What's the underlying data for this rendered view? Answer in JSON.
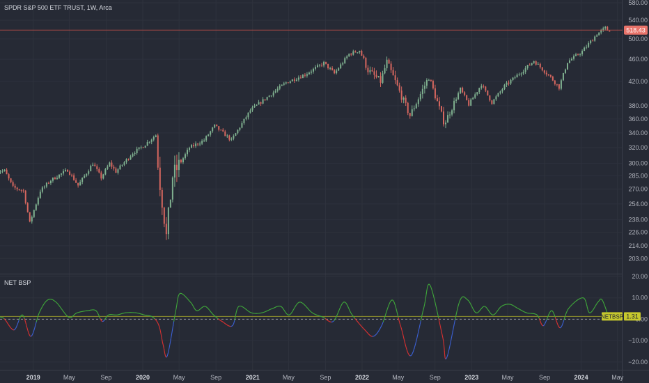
{
  "colors": {
    "background": "#262a35",
    "up_candle": "#7fb08f",
    "down_candle": "#d7675f",
    "price_line": "#c9504a",
    "osc_green": "#3fa43a",
    "osc_red": "#d63131",
    "osc_blue": "#3b5fd1",
    "osc_yellow_line": "#8d8f2c",
    "badge_yellow": "#c6c82d"
  },
  "icons": [],
  "chart_data": [
    {
      "type": "candlestick",
      "title": "SPDR S&P 500 ETF TRUST, 1W, Arca",
      "scale": "log",
      "ylim": [
        198,
        580
      ],
      "y_ticks": [
        203.0,
        214.0,
        226.0,
        238.0,
        254.0,
        270.0,
        285.0,
        300.0,
        320.0,
        340.0,
        360.0,
        380.0,
        420.0,
        460.0,
        500.0,
        540.0,
        580.0
      ],
      "last_price_label": "518.43",
      "last_price": 518.43,
      "x_ticks": [
        {
          "label": "2019",
          "date": "2019-01-01",
          "bold": true
        },
        {
          "label": "May",
          "date": "2019-05-01",
          "bold": false
        },
        {
          "label": "Sep",
          "date": "2019-09-01",
          "bold": false
        },
        {
          "label": "2020",
          "date": "2020-01-01",
          "bold": true
        },
        {
          "label": "May",
          "date": "2020-05-01",
          "bold": false
        },
        {
          "label": "Sep",
          "date": "2020-09-01",
          "bold": false
        },
        {
          "label": "2021",
          "date": "2021-01-01",
          "bold": true
        },
        {
          "label": "May",
          "date": "2021-05-01",
          "bold": false
        },
        {
          "label": "Sep",
          "date": "2021-09-01",
          "bold": false
        },
        {
          "label": "2022",
          "date": "2022-01-01",
          "bold": true
        },
        {
          "label": "May",
          "date": "2022-05-01",
          "bold": false
        },
        {
          "label": "Sep",
          "date": "2022-09-01",
          "bold": false
        },
        {
          "label": "2023",
          "date": "2023-01-01",
          "bold": true
        },
        {
          "label": "May",
          "date": "2023-05-01",
          "bold": false
        },
        {
          "label": "Sep",
          "date": "2023-09-01",
          "bold": false
        },
        {
          "label": "2024",
          "date": "2024-01-01",
          "bold": true
        },
        {
          "label": "May",
          "date": "2024-05-01",
          "bold": false
        }
      ],
      "price_path": [
        [
          "2018-08-27",
          290
        ],
        [
          "2018-10-01",
          291
        ],
        [
          "2018-10-29",
          272
        ],
        [
          "2018-12-03",
          268
        ],
        [
          "2018-12-24",
          235
        ],
        [
          "2019-01-28",
          268
        ],
        [
          "2019-03-04",
          280
        ],
        [
          "2019-04-29",
          292
        ],
        [
          "2019-06-03",
          274
        ],
        [
          "2019-07-22",
          300
        ],
        [
          "2019-08-19",
          283
        ],
        [
          "2019-09-16",
          300
        ],
        [
          "2019-10-07",
          290
        ],
        [
          "2019-12-02",
          313
        ],
        [
          "2020-01-06",
          322
        ],
        [
          "2020-02-17",
          337
        ],
        [
          "2020-02-24",
          296
        ],
        [
          "2020-03-16",
          240
        ],
        [
          "2020-03-23",
          222
        ],
        [
          "2020-04-13",
          285
        ],
        [
          "2020-06-08",
          320
        ],
        [
          "2020-07-27",
          330
        ],
        [
          "2020-08-31",
          350
        ],
        [
          "2020-10-26",
          330
        ],
        [
          "2020-12-28",
          373
        ],
        [
          "2021-02-15",
          391
        ],
        [
          "2021-04-26",
          418
        ],
        [
          "2021-06-28",
          432
        ],
        [
          "2021-08-30",
          453
        ],
        [
          "2021-10-04",
          434
        ],
        [
          "2021-11-22",
          470
        ],
        [
          "2021-12-27",
          477
        ],
        [
          "2022-01-24",
          440
        ],
        [
          "2022-03-07",
          420
        ],
        [
          "2022-03-28",
          455
        ],
        [
          "2022-05-16",
          395
        ],
        [
          "2022-06-13",
          365
        ],
        [
          "2022-08-15",
          428
        ],
        [
          "2022-10-03",
          357
        ],
        [
          "2022-10-10",
          357
        ],
        [
          "2022-11-28",
          407
        ],
        [
          "2022-12-26",
          382
        ],
        [
          "2023-02-06",
          415
        ],
        [
          "2023-03-13",
          385
        ],
        [
          "2023-04-24",
          412
        ],
        [
          "2023-06-26",
          440
        ],
        [
          "2023-07-31",
          457
        ],
        [
          "2023-09-25",
          427
        ],
        [
          "2023-10-23",
          410
        ],
        [
          "2023-11-20",
          455
        ],
        [
          "2024-01-08",
          475
        ],
        [
          "2024-02-26",
          510
        ],
        [
          "2024-03-25",
          523
        ],
        [
          "2024-04-01",
          518.43
        ]
      ]
    },
    {
      "type": "line",
      "title": "NET BSP",
      "ylim": [
        -22,
        20
      ],
      "y_ticks": [
        -20.0,
        -10.0,
        0.0,
        10.0,
        20.0
      ],
      "y_tick_labels": [
        "−20.00",
        "−10.00",
        "0.00",
        "10.00",
        "20.00"
      ],
      "reference_line": 0,
      "last_value_label": "1.31",
      "series_label": "NETBSP",
      "last_value": 1.31,
      "color_rule": "green when above 0, red when falling below 0, blue when rising below 0",
      "series": [
        [
          "2018-08-27",
          1
        ],
        [
          "2018-09-24",
          0.5
        ],
        [
          "2018-10-29",
          -5
        ],
        [
          "2018-11-26",
          2
        ],
        [
          "2018-12-24",
          -8
        ],
        [
          "2019-01-21",
          3
        ],
        [
          "2019-02-18",
          9
        ],
        [
          "2019-03-18",
          8
        ],
        [
          "2019-04-29",
          1
        ],
        [
          "2019-05-27",
          3
        ],
        [
          "2019-07-01",
          4
        ],
        [
          "2019-07-29",
          4
        ],
        [
          "2019-08-19",
          -1
        ],
        [
          "2019-09-09",
          2
        ],
        [
          "2019-10-07",
          2
        ],
        [
          "2019-11-04",
          3
        ],
        [
          "2019-12-09",
          3
        ],
        [
          "2020-01-06",
          2
        ],
        [
          "2020-02-03",
          1
        ],
        [
          "2020-02-24",
          -3
        ],
        [
          "2020-03-09",
          -12
        ],
        [
          "2020-03-23",
          -17
        ],
        [
          "2020-04-20",
          4
        ],
        [
          "2020-05-04",
          12
        ],
        [
          "2020-06-08",
          8
        ],
        [
          "2020-06-29",
          4
        ],
        [
          "2020-07-27",
          6
        ],
        [
          "2020-08-24",
          2
        ],
        [
          "2020-09-21",
          -1
        ],
        [
          "2020-10-26",
          -3
        ],
        [
          "2020-11-16",
          6
        ],
        [
          "2020-12-28",
          3
        ],
        [
          "2021-02-01",
          3
        ],
        [
          "2021-03-08",
          5
        ],
        [
          "2021-04-05",
          6
        ],
        [
          "2021-05-03",
          2
        ],
        [
          "2021-06-07",
          8
        ],
        [
          "2021-07-19",
          3
        ],
        [
          "2021-08-23",
          1
        ],
        [
          "2021-09-27",
          -1
        ],
        [
          "2021-11-01",
          8
        ],
        [
          "2021-11-29",
          2
        ],
        [
          "2022-01-10",
          -5
        ],
        [
          "2022-02-07",
          -8
        ],
        [
          "2022-03-07",
          -3
        ],
        [
          "2022-04-11",
          9
        ],
        [
          "2022-05-09",
          -3
        ],
        [
          "2022-06-13",
          -17
        ],
        [
          "2022-07-25",
          5
        ],
        [
          "2022-08-15",
          16
        ],
        [
          "2022-09-26",
          -8
        ],
        [
          "2022-10-10",
          -18
        ],
        [
          "2022-11-21",
          8
        ],
        [
          "2022-12-19",
          9
        ],
        [
          "2023-01-16",
          3
        ],
        [
          "2023-02-13",
          6
        ],
        [
          "2023-03-13",
          2
        ],
        [
          "2023-04-10",
          6
        ],
        [
          "2023-05-08",
          7
        ],
        [
          "2023-06-05",
          5
        ],
        [
          "2023-07-03",
          3
        ],
        [
          "2023-08-07",
          2
        ],
        [
          "2023-08-28",
          -3
        ],
        [
          "2023-09-25",
          4
        ],
        [
          "2023-10-23",
          -4
        ],
        [
          "2023-11-20",
          5
        ],
        [
          "2024-01-08",
          10
        ],
        [
          "2024-01-29",
          3
        ],
        [
          "2024-02-26",
          8
        ],
        [
          "2024-03-11",
          9
        ],
        [
          "2024-04-01",
          1.31
        ]
      ]
    }
  ]
}
